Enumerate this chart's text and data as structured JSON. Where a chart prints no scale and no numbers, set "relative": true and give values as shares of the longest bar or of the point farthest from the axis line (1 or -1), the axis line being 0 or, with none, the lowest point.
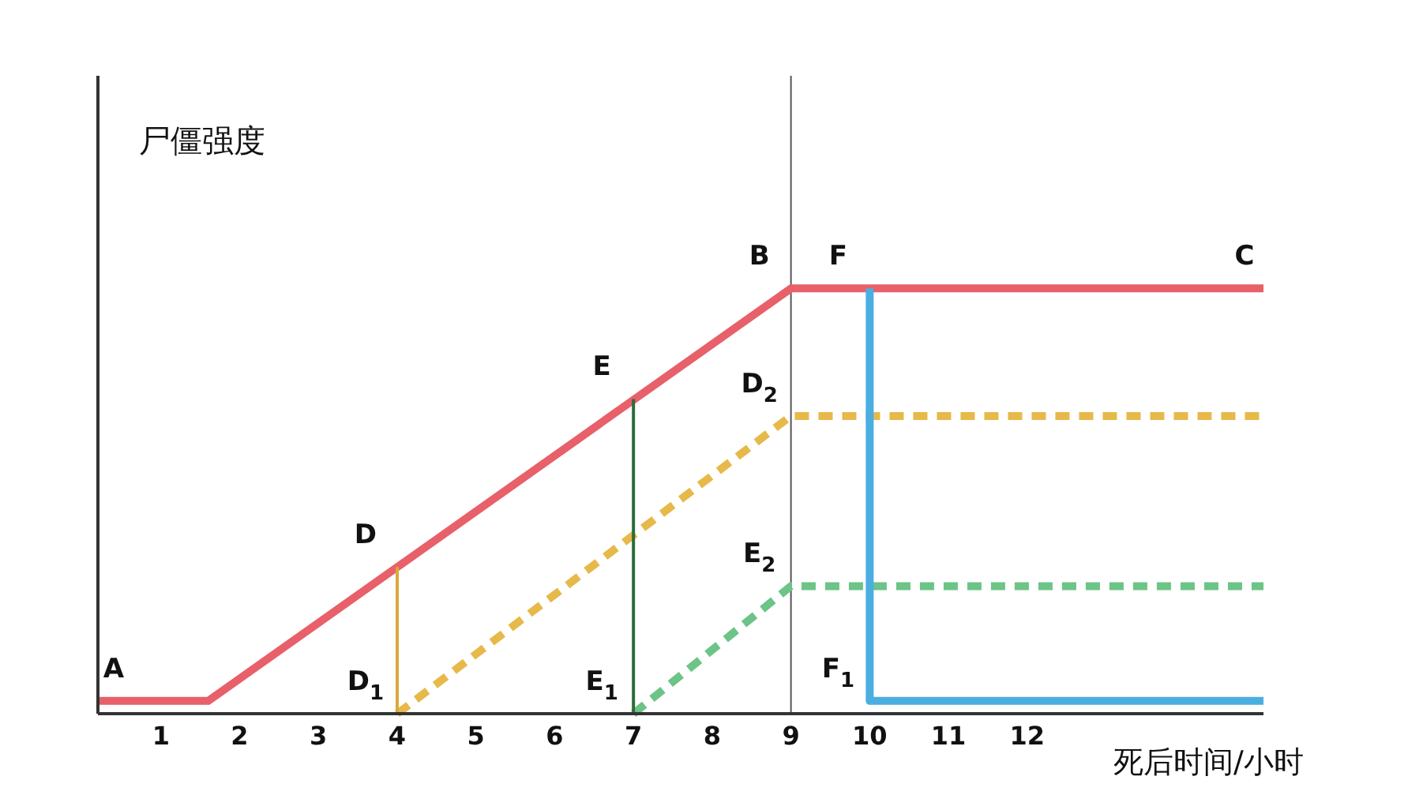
{
  "chart_data": {
    "type": "line",
    "relative": true,
    "ylabel": "尸僵强度",
    "xlabel": "死后时间/小时",
    "xlim": [
      0.2,
      15
    ],
    "xticks": [
      1,
      2,
      3,
      4,
      5,
      6,
      7,
      8,
      9,
      10,
      11,
      12
    ],
    "marker": "none",
    "series": [
      {
        "color": "#e8606a",
        "line_style": "solid",
        "x": [
          0.2,
          1.6,
          9,
          15
        ],
        "values": [
          0.03,
          0.03,
          1,
          1
        ]
      },
      {
        "color": "#e6b94a",
        "line_style": "dashed",
        "x": [
          4,
          9,
          15
        ],
        "values": [
          0,
          0.7,
          0.7
        ]
      },
      {
        "color": "#6cc486",
        "line_style": "dashed",
        "x": [
          7,
          9,
          15
        ],
        "values": [
          0,
          0.3,
          0.3
        ]
      },
      {
        "color": "#4aaee0",
        "line_style": "solid",
        "x": [
          10,
          10,
          15
        ],
        "values": [
          1,
          0.03,
          0.03
        ]
      },
      {
        "color": "#d9a93a",
        "line_style": "solid",
        "x": [
          4,
          4
        ],
        "values": [
          0.345,
          0
        ]
      },
      {
        "color": "#2f6b3a",
        "line_style": "solid",
        "x": [
          7,
          7
        ],
        "values": [
          0.74,
          0
        ]
      }
    ],
    "ref_lines": [
      {
        "axis": "x",
        "value": 9,
        "color": "#555555"
      }
    ],
    "annotations": [
      {
        "text": "A",
        "x": 0.2,
        "y": 0.03
      },
      {
        "text": "B",
        "x": 9,
        "y": 1
      },
      {
        "text": "C",
        "x": 15,
        "y": 1
      },
      {
        "text": "D",
        "x": 4,
        "y": 0.345
      },
      {
        "text": "D$_{1}$",
        "x": 4,
        "y": 0
      },
      {
        "text": "D$_{2}$",
        "x": 9,
        "y": 0.7
      },
      {
        "text": "E",
        "x": 7,
        "y": 0.74
      },
      {
        "text": "E$_{1}$",
        "x": 7,
        "y": 0
      },
      {
        "text": "E$_{2}$",
        "x": 9,
        "y": 0.3
      },
      {
        "text": "F",
        "x": 10,
        "y": 1
      },
      {
        "text": "F$_{1}$",
        "x": 10,
        "y": 0.03
      }
    ]
  }
}
